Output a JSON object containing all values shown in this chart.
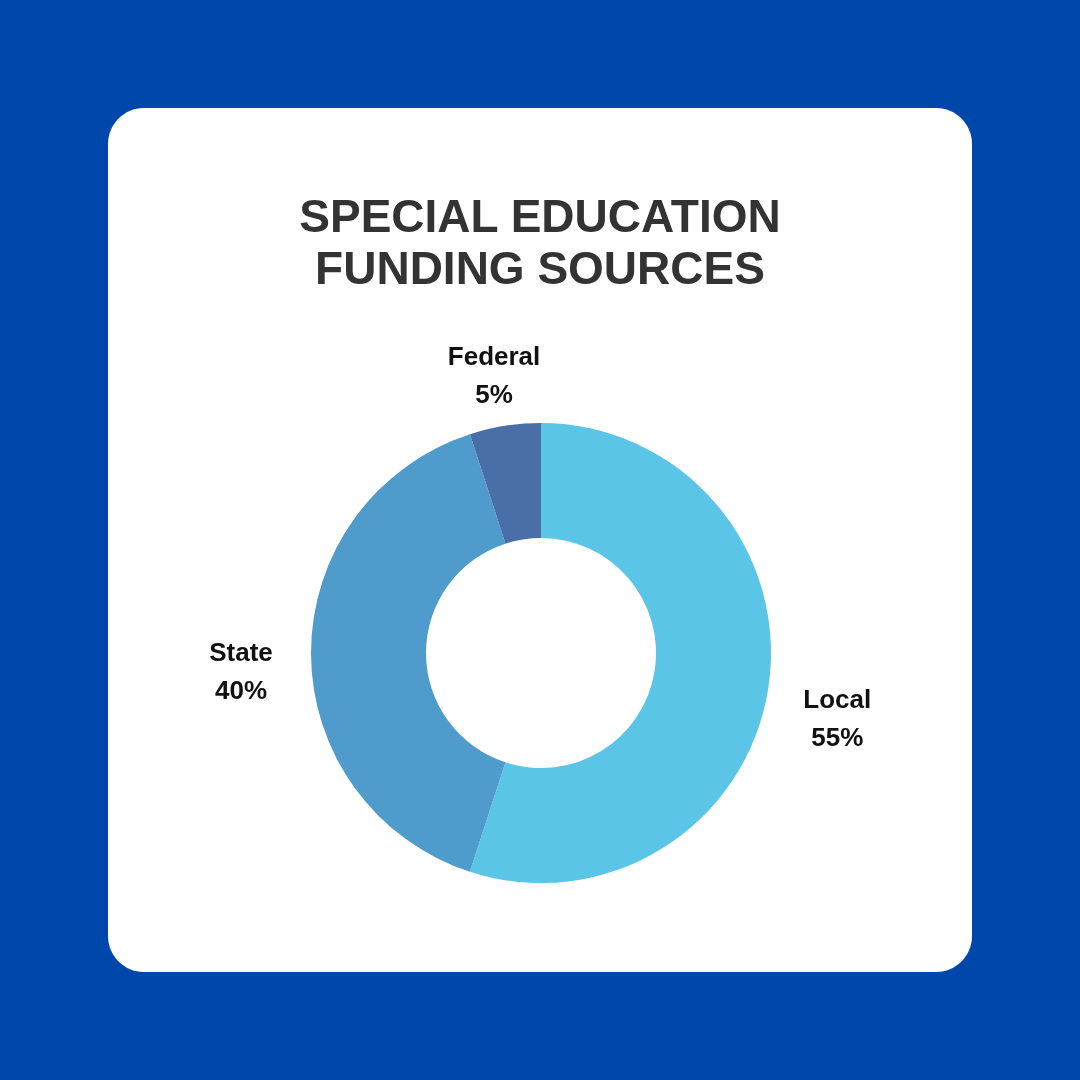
{
  "chart_data": {
    "type": "donut",
    "title": "SPECIAL EDUCATION\nFUNDING SOURCES",
    "categories": [
      "Local",
      "State",
      "Federal"
    ],
    "values": [
      55,
      40,
      5
    ],
    "value_labels": [
      "55%",
      "40%",
      "5%"
    ],
    "colors": [
      "#5bc5e8",
      "#4f9bcb",
      "#4a6ea8"
    ],
    "legend": false
  }
}
